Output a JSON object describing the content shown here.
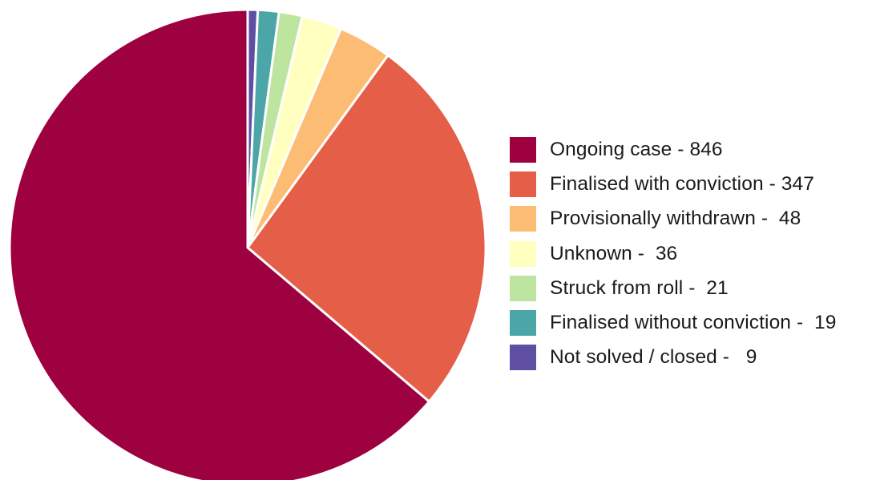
{
  "chart_data": {
    "type": "pie",
    "start_angle_deg": 0,
    "direction": "clockwise",
    "slices": [
      {
        "label": "Not solved / closed",
        "value": 9,
        "color": "#5E4FA2",
        "legend_text": "Not solved / closed -   9"
      },
      {
        "label": "Finalised without conviction",
        "value": 19,
        "color": "#4CA5A7",
        "legend_text": "Finalised without conviction -  19"
      },
      {
        "label": "Struck from roll",
        "value": 21,
        "color": "#BDE5A0",
        "legend_text": "Struck from roll -  21"
      },
      {
        "label": "Unknown",
        "value": 36,
        "color": "#FFFFBF",
        "legend_text": "Unknown -  36"
      },
      {
        "label": "Provisionally withdrawn",
        "value": 48,
        "color": "#FDBC73",
        "legend_text": "Provisionally withdrawn -  48"
      },
      {
        "label": "Finalised with conviction",
        "value": 347,
        "color": "#E55E47",
        "legend_text": "Finalised with conviction - 347"
      },
      {
        "label": "Ongoing case",
        "value": 846,
        "color": "#9E0140",
        "legend_text": "Ongoing case - 846"
      }
    ],
    "legend_order": [
      "Ongoing case",
      "Finalised with conviction",
      "Provisionally withdrawn",
      "Unknown",
      "Struck from roll",
      "Finalised without conviction",
      "Not solved / closed"
    ],
    "legend_position": "right"
  }
}
